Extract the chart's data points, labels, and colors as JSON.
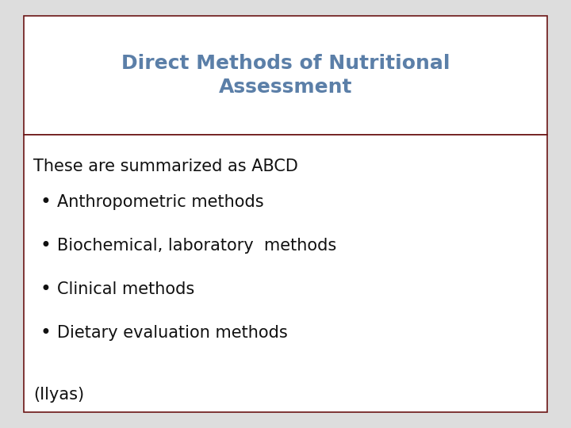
{
  "title": "Direct Methods of Nutritional\nAssessment",
  "title_color": "#5B7FA8",
  "title_fontsize": 18,
  "title_box_bg": "#FFFFFF",
  "title_box_edge": "#6B1515",
  "body_text_intro": "These are summarized as ABCD",
  "bullet_items": [
    "Anthropometric methods",
    "Biochemical, laboratory  methods",
    "Clinical methods",
    "Dietary evaluation methods"
  ],
  "footer": "(Ilyas)",
  "body_fontsize": 15,
  "body_color": "#111111",
  "body_box_bg": "#FFFFFF",
  "body_box_edge": "#6B1515",
  "bg_color": "#DDDDDD",
  "fig_width": 7.2,
  "fig_height": 5.4,
  "dpi": 100
}
